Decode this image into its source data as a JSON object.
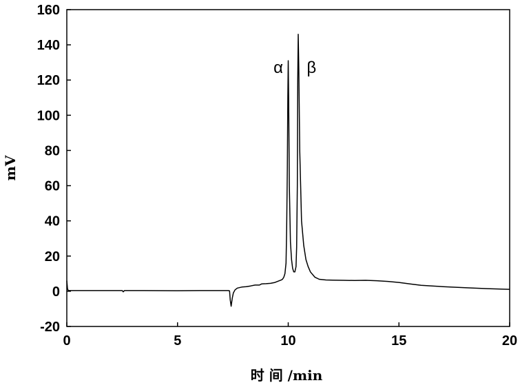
{
  "chart_data": {
    "type": "line",
    "xlabel": "时 间 /min",
    "ylabel": "mV",
    "xlim": [
      0,
      20
    ],
    "ylim": [
      -20,
      160
    ],
    "x_ticks": [
      0,
      5,
      10,
      15,
      20
    ],
    "y_ticks": [
      -20,
      0,
      20,
      40,
      60,
      80,
      100,
      120,
      140,
      160
    ],
    "grid": false,
    "legend": "none",
    "line_color": "#000000",
    "annotations": [
      {
        "text": "α",
        "x": 9.55,
        "y": 124
      },
      {
        "text": "β",
        "x": 11.05,
        "y": 124
      }
    ],
    "series": [
      {
        "x": [
          0.0,
          0.03,
          0.06,
          0.1,
          1.0,
          2.0,
          2.5,
          2.55,
          2.6,
          3.5,
          5.0,
          6.0,
          7.0,
          7.3,
          7.35,
          7.38,
          7.42,
          7.47,
          7.52,
          7.6,
          7.7,
          7.9,
          8.1,
          8.3,
          8.5,
          8.7,
          8.8,
          9.0,
          9.2,
          9.4,
          9.6,
          9.7,
          9.75,
          9.8,
          9.85,
          9.9,
          9.93,
          9.96,
          9.98,
          10.0,
          10.02,
          10.05,
          10.1,
          10.15,
          10.2,
          10.25,
          10.3,
          10.35,
          10.38,
          10.41,
          10.43,
          10.45,
          10.48,
          10.52,
          10.6,
          10.7,
          10.8,
          10.9,
          11.0,
          11.2,
          11.4,
          11.7,
          12.0,
          12.5,
          13.0,
          13.5,
          14.0,
          14.5,
          15.0,
          15.5,
          16.0,
          17.0,
          18.0,
          19.0,
          20.0
        ],
        "y": [
          6,
          1.5,
          0.6,
          0.4,
          0.4,
          0.4,
          0.4,
          -0.3,
          0.4,
          0.4,
          0.3,
          0.4,
          0.4,
          0.4,
          0.2,
          -5,
          -8.5,
          -4,
          -1,
          0.8,
          1.8,
          2.4,
          2.6,
          3.0,
          3.5,
          3.5,
          4.2,
          4.3,
          4.5,
          5,
          6,
          6.5,
          7,
          8,
          10,
          16,
          35,
          70,
          110,
          131,
          110,
          60,
          28,
          18,
          13,
          11,
          11,
          14,
          25,
          60,
          120,
          146,
          125,
          80,
          40,
          26,
          18,
          14,
          11,
          8,
          6.8,
          6.4,
          6.3,
          6.2,
          6.1,
          6.2,
          6.0,
          5.6,
          5.0,
          4.2,
          3.4,
          2.6,
          2.0,
          1.5,
          1.1
        ]
      }
    ]
  }
}
